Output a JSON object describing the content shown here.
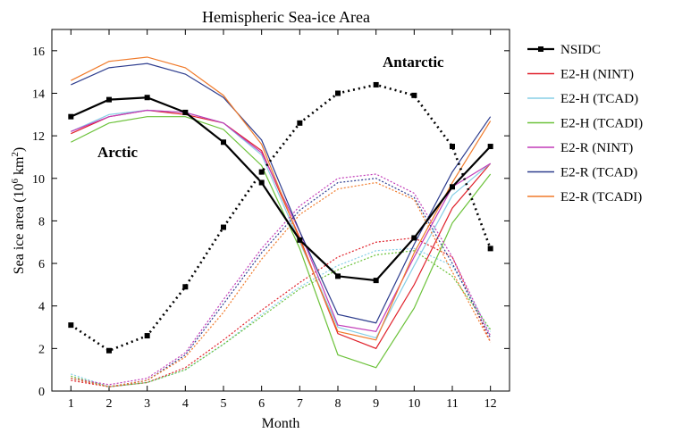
{
  "chart_data": {
    "type": "line",
    "title": "Hemispheric Sea-ice Area",
    "xlabel": "Month",
    "ylabel_main": "Sea ice area (10",
    "ylabel_sup": "6",
    "ylabel_unit": " km",
    "ylabel_sup2": "2",
    "ylabel_close": ")",
    "x": [
      1,
      2,
      3,
      4,
      5,
      6,
      7,
      8,
      9,
      10,
      11,
      12
    ],
    "xlim": [
      0.5,
      12.5
    ],
    "ylim": [
      0,
      17
    ],
    "yticks": [
      0,
      2,
      4,
      6,
      8,
      10,
      12,
      14,
      16
    ],
    "grid": false,
    "legend_position": "right",
    "annotations": [
      {
        "text": "Arctic",
        "x": 2.5,
        "y": 11.6
      },
      {
        "text": "Antarctic",
        "x": 9.2,
        "y": 15.2
      }
    ],
    "legend": [
      "NSIDC",
      "E2-H (NINT)",
      "E2-H (TCAD)",
      "E2-H (TCADI)",
      "E2-R (NINT)",
      "E2-R (TCAD)",
      "E2-R (TCADI)"
    ],
    "series": [
      {
        "name": "NSIDC",
        "color": "#000000",
        "marker": "square",
        "arctic": [
          12.9,
          13.7,
          13.8,
          13.1,
          11.7,
          9.8,
          7.1,
          5.4,
          5.2,
          7.2,
          9.6,
          11.5
        ],
        "antarctic": [
          3.1,
          1.9,
          2.6,
          4.9,
          7.7,
          10.3,
          12.6,
          14.0,
          14.4,
          13.9,
          11.5,
          6.7
        ]
      },
      {
        "name": "E2-H (NINT)",
        "color": "#e0202a",
        "arctic": [
          12.1,
          12.9,
          13.2,
          13.0,
          12.6,
          11.3,
          7.2,
          2.7,
          2.0,
          5.0,
          8.6,
          10.7
        ],
        "antarctic": [
          0.5,
          0.2,
          0.4,
          1.1,
          2.4,
          3.8,
          5.1,
          6.3,
          7.0,
          7.2,
          6.3,
          2.3
        ]
      },
      {
        "name": "E2-H (TCAD)",
        "color": "#87cfe6",
        "arctic": [
          12.2,
          13.0,
          13.2,
          13.1,
          12.6,
          11.1,
          7.0,
          3.0,
          2.5,
          5.9,
          9.2,
          10.7
        ],
        "antarctic": [
          0.8,
          0.2,
          0.4,
          1.0,
          2.2,
          3.6,
          4.9,
          5.9,
          6.6,
          6.7,
          5.9,
          2.8
        ]
      },
      {
        "name": "E2-H (TCADI)",
        "color": "#6cc23a",
        "arctic": [
          11.7,
          12.6,
          12.9,
          12.9,
          12.3,
          10.6,
          6.7,
          1.7,
          1.1,
          3.9,
          7.9,
          10.2
        ],
        "antarctic": [
          0.7,
          0.2,
          0.4,
          1.0,
          2.2,
          3.5,
          4.8,
          5.7,
          6.4,
          6.6,
          5.4,
          2.9
        ]
      },
      {
        "name": "E2-R (NINT)",
        "color": "#c23cb8",
        "arctic": [
          12.2,
          12.9,
          13.2,
          13.1,
          12.6,
          11.2,
          7.5,
          3.1,
          2.8,
          6.3,
          9.6,
          10.7
        ],
        "antarctic": [
          0.6,
          0.3,
          0.6,
          1.8,
          4.3,
          6.7,
          8.7,
          10.0,
          10.2,
          9.3,
          6.3,
          2.6
        ]
      },
      {
        "name": "E2-R (TCAD)",
        "color": "#2e3d8e",
        "arctic": [
          14.4,
          15.2,
          15.4,
          14.9,
          13.8,
          11.8,
          7.5,
          3.6,
          3.2,
          6.9,
          10.3,
          12.9
        ],
        "antarctic": [
          0.6,
          0.2,
          0.5,
          1.7,
          4.1,
          6.5,
          8.5,
          9.8,
          10.0,
          9.1,
          6.0,
          2.5
        ]
      },
      {
        "name": "E2-R (TCADI)",
        "color": "#f07a2a",
        "arctic": [
          14.6,
          15.5,
          15.7,
          15.2,
          13.9,
          11.6,
          7.1,
          2.8,
          2.4,
          6.5,
          9.8,
          12.7
        ],
        "antarctic": [
          0.6,
          0.2,
          0.5,
          1.6,
          3.7,
          6.2,
          8.3,
          9.5,
          9.8,
          9.0,
          5.6,
          2.3
        ]
      }
    ]
  }
}
